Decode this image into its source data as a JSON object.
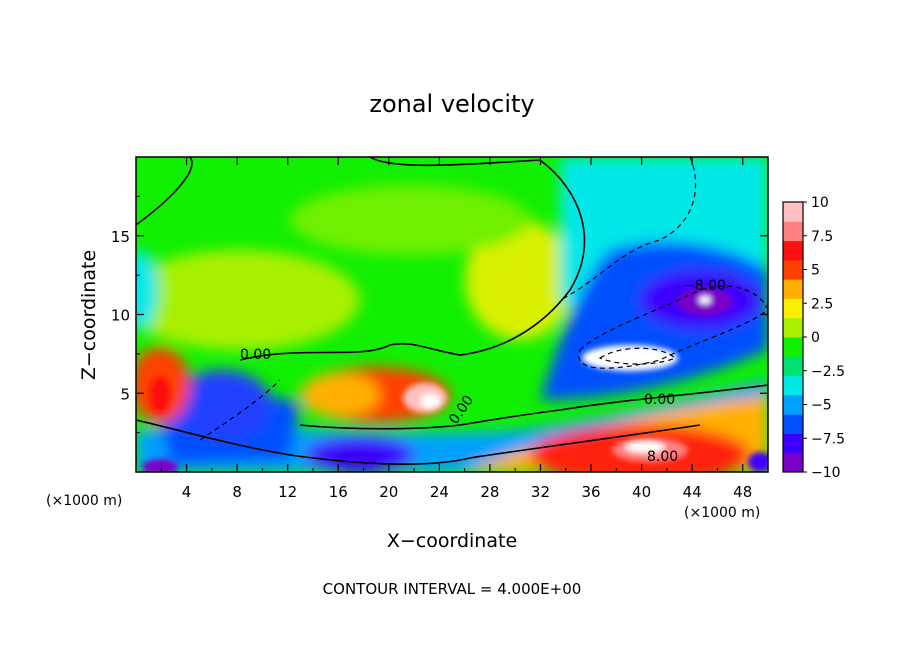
{
  "chart_data": {
    "type": "heatmap",
    "title": "zonal velocity",
    "xlabel": "X−coordinate",
    "ylabel": "Z−coordinate",
    "x_unit": "(×1000 m)",
    "y_unit": "(×1000 m)",
    "xlim": [
      0,
      50
    ],
    "ylim": [
      0,
      20
    ],
    "x_ticks": [
      "4",
      "8",
      "12",
      "16",
      "20",
      "24",
      "28",
      "32",
      "36",
      "40",
      "44",
      "48"
    ],
    "y_ticks": [
      "5",
      "10",
      "15"
    ],
    "colorbar": {
      "range": [
        -10,
        10
      ],
      "tick_labels": [
        "10",
        "7.5",
        "5",
        "2.5",
        "0",
        "−2.5",
        "−5",
        "−7.5",
        "−10"
      ],
      "colors": [
        "#7a00c8",
        "#3c00ff",
        "#0050ff",
        "#00a0ff",
        "#00e8e8",
        "#00e070",
        "#10f000",
        "#a8f000",
        "#f8f000",
        "#ffb000",
        "#ff4000",
        "#ff1010",
        "#ff8080",
        "#ffc0c0"
      ]
    },
    "contour_labels": [
      "0.00",
      "0.00",
      "0.00",
      "−8.00",
      "8.00"
    ],
    "annotation": "CONTOUR INTERVAL = 4.000E+00",
    "features": [
      {
        "kind": "min",
        "x": 37,
        "z": 7.2,
        "value": -12
      },
      {
        "kind": "min",
        "x": 45,
        "z": 10.5,
        "value": -11
      },
      {
        "kind": "max",
        "x": 23,
        "z": 4.6,
        "value": 10.5
      },
      {
        "kind": "max",
        "x": 41,
        "z": 1.0,
        "value": 9.5
      },
      {
        "kind": "max",
        "x": 2.2,
        "z": 5.5,
        "value": 7.5
      }
    ]
  }
}
